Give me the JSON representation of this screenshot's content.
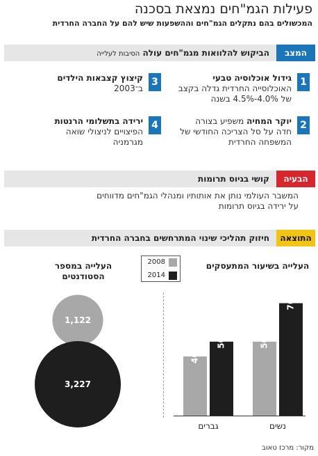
{
  "header": {
    "title": "פעילות הגמ\"חים נמצאת בסכנה",
    "subtitle": "המכשולים בהם נתקלים הגמ\"חים וההשפעות שיש להם על החברה החרדית"
  },
  "situation": {
    "tag": "המצב",
    "heading": "הביקוש להלוואות מגמ\"חים עולה",
    "heading_small": "הסיבות לעלייה",
    "items": [
      {
        "num": "1",
        "bold": "גידול אוכלוסיה טבעי",
        "text": "האוכלוסייה החרדית גדלה בקצב של 4.0%-4.5% בשנה"
      },
      {
        "num": "3",
        "bold": "קיצוץ קצבאות הילדים",
        "text": "ב־2003"
      },
      {
        "num": "2",
        "bold": "יוקר המחיה",
        "text": "משפיע בצורה חדה על סל הצריכה החודשי של המשפחה החרדית"
      },
      {
        "num": "4",
        "bold": "ירידה בתשלומי הרנטות",
        "text": "הפיצויים לניצולי שואה מגרמניה"
      }
    ]
  },
  "problem": {
    "tag": "הבעיה",
    "heading": "קושי בגיוס תרומות",
    "text": "המשבר העולמי נותן את אותותיו ומנהלי הגמ\"חים מדווחים על ירידה בגיוס תרומות"
  },
  "result": {
    "tag": "התוצאה",
    "heading": "חיזוק תהליכי שינוי המתרחשים בחברה החרדית"
  },
  "chart_data": [
    {
      "type": "bar",
      "title": "העלייה בשיעור המתעסקים",
      "categories": [
        "נשים",
        "גברים"
      ],
      "series": [
        {
          "name": "2008",
          "values": [
            50,
            40
          ],
          "labels": [
            "50%",
            "40%"
          ],
          "color": "#a8a8a8"
        },
        {
          "name": "2014",
          "values": [
            76,
            50
          ],
          "labels": [
            "76%",
            "50%"
          ],
          "color": "#1e1e1e"
        }
      ],
      "ylim": [
        0,
        80
      ],
      "legend": "top-left"
    },
    {
      "type": "bubble",
      "title": "העלייה במספר הסטודנטים",
      "series": [
        {
          "name": "2008",
          "value": 1122,
          "label": "1,122",
          "color": "#a8a8a8"
        },
        {
          "name": "2014",
          "value": 3227,
          "label": "3,227",
          "color": "#1e1e1e"
        }
      ]
    }
  ],
  "legend": {
    "items": [
      {
        "label": "2008",
        "color": "#a8a8a8"
      },
      {
        "label": "2014",
        "color": "#1e1e1e"
      }
    ]
  },
  "source": "מקור: מרכז טאוב"
}
